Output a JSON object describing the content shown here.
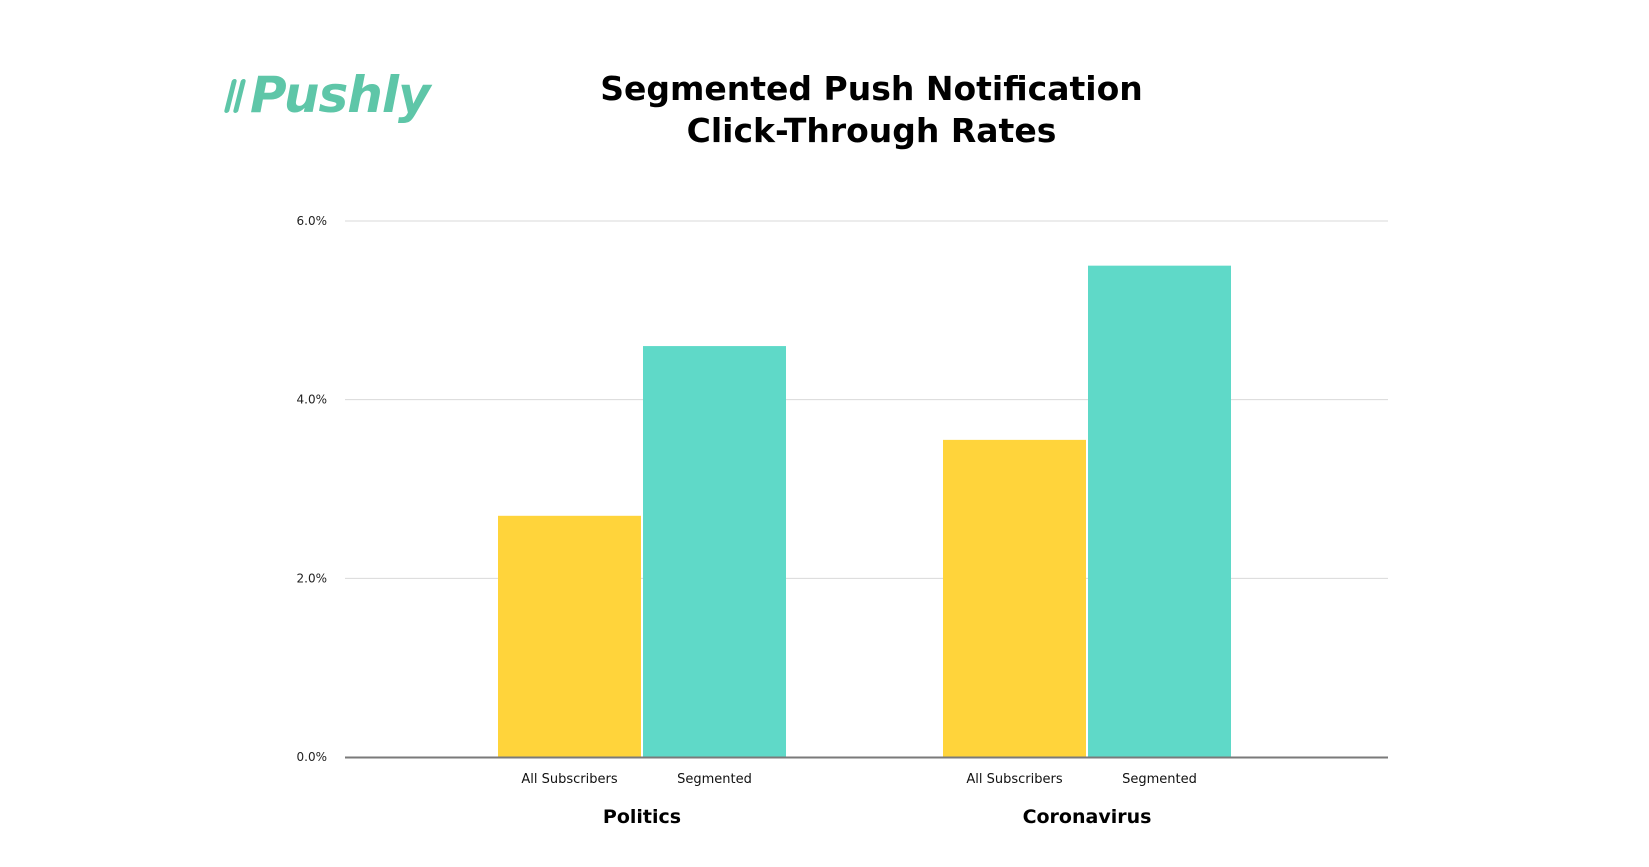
{
  "logo": {
    "text": "Pushly",
    "color": "#5ec6a8"
  },
  "chart_data": {
    "type": "bar",
    "title": "Segmented Push Notification",
    "subtitle": "Click-Through Rates",
    "groups": [
      "Politics",
      "Coronavirus"
    ],
    "categories": [
      "All Subscribers",
      "Segmented"
    ],
    "series": [
      {
        "values": [
          2.7,
          3.55
        ],
        "color": "#ffd43b"
      },
      {
        "values": [
          4.6,
          5.5
        ],
        "color": "#5fd9c8"
      }
    ],
    "yticks": [
      "0.0%",
      "2.0%",
      "4.0%",
      "6.0%"
    ],
    "ytick_values": [
      0,
      2,
      4,
      6
    ],
    "ylim": [
      0,
      6
    ],
    "xlabel": "",
    "ylabel": "",
    "grid": true,
    "legend": "none"
  }
}
